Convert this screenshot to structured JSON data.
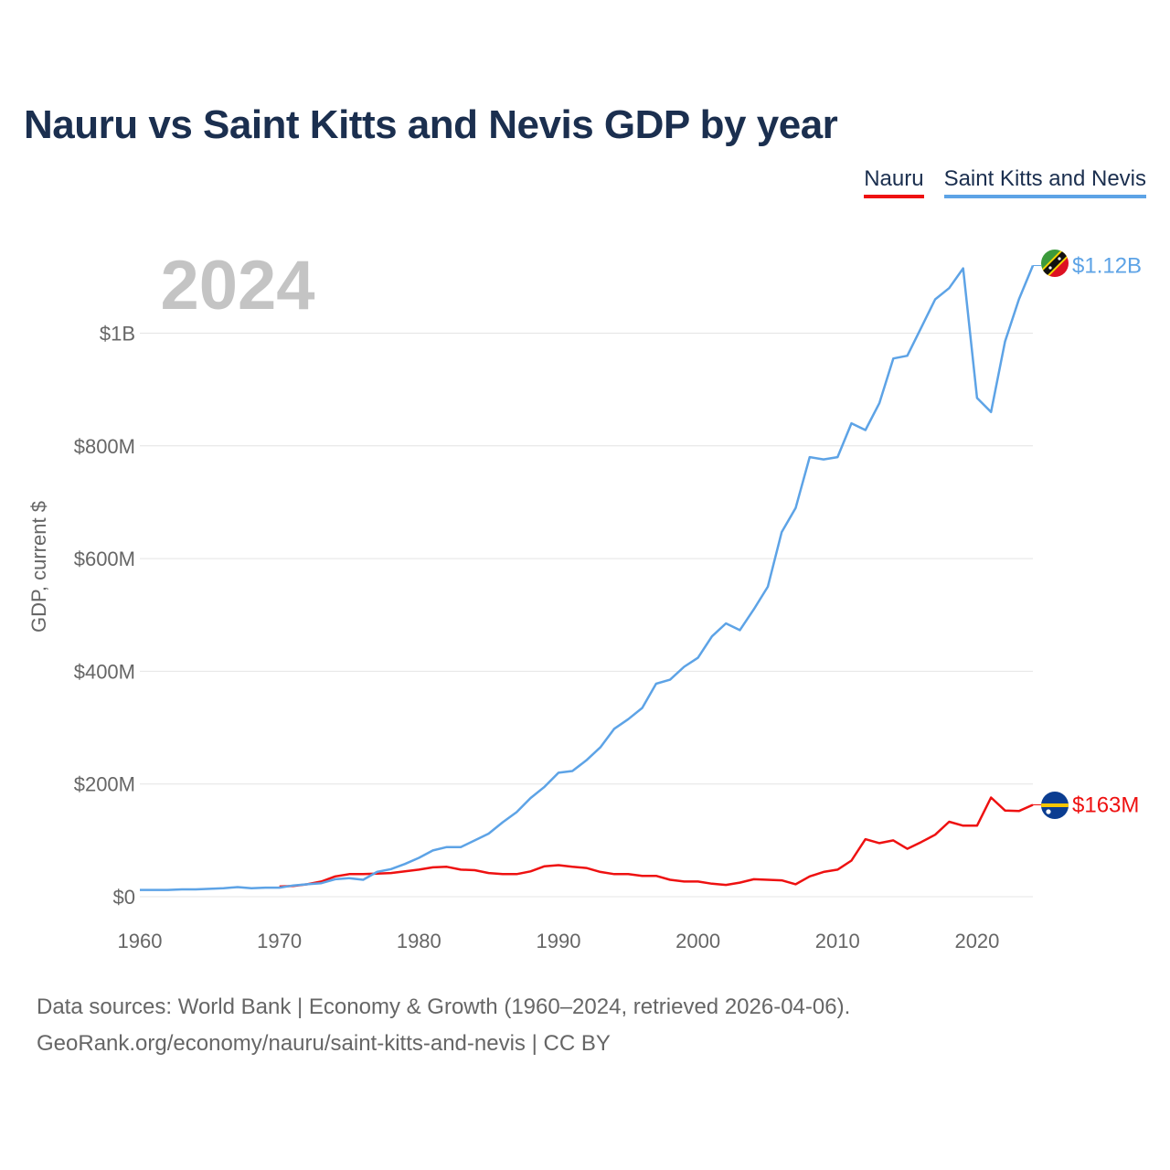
{
  "chart_data": {
    "type": "line",
    "title": "Nauru vs Saint Kitts and Nevis GDP by year",
    "ylabel": "GDP, current $",
    "xlabel": "",
    "year_label": "2024",
    "ylim": [
      0,
      1150000000
    ],
    "xlim": [
      1960,
      2024
    ],
    "y_ticks": [
      {
        "value": 0,
        "label": "$0"
      },
      {
        "value": 200000000,
        "label": "$200M"
      },
      {
        "value": 400000000,
        "label": "$400M"
      },
      {
        "value": 600000000,
        "label": "$600M"
      },
      {
        "value": 800000000,
        "label": "$800M"
      },
      {
        "value": 1000000000,
        "label": "$1B"
      }
    ],
    "x_ticks": [
      {
        "value": 1960,
        "label": "1960"
      },
      {
        "value": 1970,
        "label": "1970"
      },
      {
        "value": 1980,
        "label": "1980"
      },
      {
        "value": 1990,
        "label": "1990"
      },
      {
        "value": 2000,
        "label": "2000"
      },
      {
        "value": 2010,
        "label": "2010"
      },
      {
        "value": 2020,
        "label": "2020"
      }
    ],
    "series": [
      {
        "name": "Nauru",
        "color": "#ee1111",
        "end_label": "$163M",
        "x": [
          1970,
          1971,
          1972,
          1973,
          1974,
          1975,
          1976,
          1977,
          1978,
          1979,
          1980,
          1981,
          1982,
          1983,
          1984,
          1985,
          1986,
          1987,
          1988,
          1989,
          1990,
          1991,
          1992,
          1993,
          1994,
          1995,
          1996,
          1997,
          1998,
          1999,
          2000,
          2001,
          2002,
          2003,
          2004,
          2005,
          2006,
          2007,
          2008,
          2009,
          2010,
          2011,
          2012,
          2013,
          2014,
          2015,
          2016,
          2017,
          2018,
          2019,
          2020,
          2021,
          2022,
          2023,
          2024
        ],
        "values": [
          18,
          19,
          22,
          27,
          36,
          40,
          40,
          41,
          42,
          45,
          48,
          52,
          53,
          48,
          47,
          42,
          40,
          40,
          45,
          54,
          56,
          53,
          51,
          44,
          40,
          40,
          37,
          37,
          30,
          27,
          27,
          23,
          21,
          25,
          31,
          30,
          29,
          22,
          36,
          44,
          48,
          64,
          102,
          95,
          100,
          85,
          97,
          110,
          133,
          126,
          126,
          176,
          153,
          152,
          163
        ]
      },
      {
        "name": "Saint Kitts and Nevis",
        "color": "#5da3e6",
        "end_label": "$1.12B",
        "x": [
          1960,
          1961,
          1962,
          1963,
          1964,
          1965,
          1966,
          1967,
          1968,
          1969,
          1970,
          1971,
          1972,
          1973,
          1974,
          1975,
          1976,
          1977,
          1978,
          1979,
          1980,
          1981,
          1982,
          1983,
          1984,
          1985,
          1986,
          1987,
          1988,
          1989,
          1990,
          1991,
          1992,
          1993,
          1994,
          1995,
          1996,
          1997,
          1998,
          1999,
          2000,
          2001,
          2002,
          2003,
          2004,
          2005,
          2006,
          2007,
          2008,
          2009,
          2010,
          2011,
          2012,
          2013,
          2014,
          2015,
          2016,
          2017,
          2018,
          2019,
          2020,
          2021,
          2022,
          2023,
          2024
        ],
        "values": [
          12,
          12,
          12,
          13,
          13,
          14,
          15,
          17,
          15,
          16,
          16,
          20,
          22,
          24,
          31,
          33,
          30,
          44,
          49,
          58,
          69,
          82,
          88,
          88,
          100,
          112,
          132,
          150,
          175,
          195,
          220,
          223,
          242,
          265,
          298,
          315,
          335,
          378,
          385,
          408,
          424,
          462,
          485,
          473,
          510,
          550,
          647,
          690,
          780,
          776,
          780,
          840,
          828,
          876,
          955,
          960,
          1010,
          1060,
          1080,
          1115,
          885,
          860,
          985,
          1060,
          1120
        ]
      }
    ]
  },
  "footer": {
    "source_line1": "Data sources: World Bank | Economy & Growth (1960–2024, retrieved 2026-04-06).",
    "source_line2": "GeoRank.org/economy/nauru/saint-kitts-and-nevis | CC BY"
  },
  "flags": {
    "nauru": "nauru-flag-icon",
    "skn": "saint-kitts-and-nevis-flag-icon"
  }
}
